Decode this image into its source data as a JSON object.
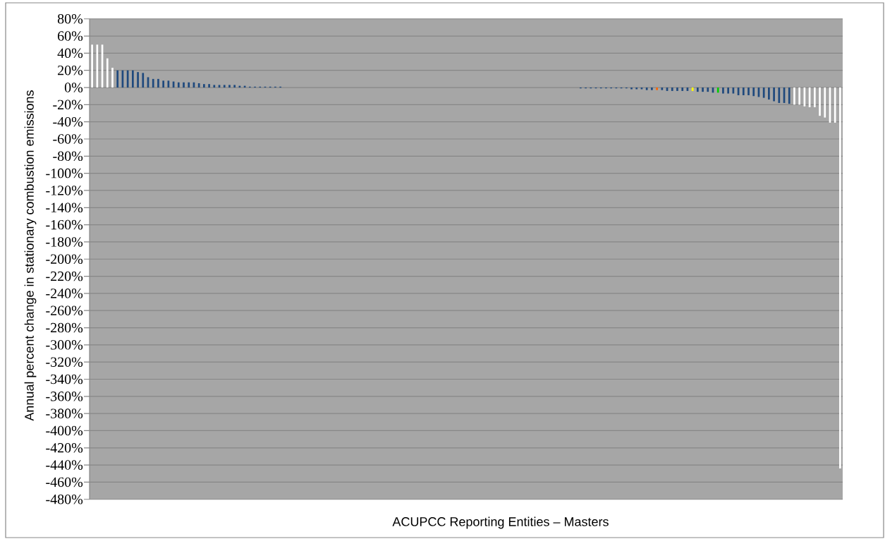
{
  "chart_data": {
    "type": "bar",
    "xlabel": "ACUPCC Reporting Entities – Masters",
    "ylabel": "Annual percent change in stationary combustion emissions",
    "categories": [
      null,
      null,
      null,
      null,
      null,
      null,
      null,
      null,
      null,
      null,
      null,
      null,
      null,
      null,
      null,
      null,
      null,
      null,
      null,
      null,
      null,
      null,
      null,
      null,
      null,
      null,
      null,
      null,
      null,
      null,
      null,
      null,
      null,
      null,
      null,
      null,
      null,
      null,
      null,
      null,
      null,
      null,
      null,
      null,
      null,
      null,
      null,
      null,
      null,
      null,
      null,
      null,
      null,
      null,
      null,
      null,
      null,
      null,
      null,
      null,
      null,
      null,
      null,
      null,
      null,
      null,
      null,
      null,
      null,
      null,
      null,
      null,
      null,
      null,
      null,
      null,
      null,
      null,
      null,
      null,
      null,
      null,
      null,
      null,
      null,
      null,
      null,
      null,
      null,
      null,
      null,
      null,
      null,
      null,
      null,
      null,
      null,
      null,
      null,
      null,
      null,
      null,
      null,
      null,
      null,
      null,
      null,
      null,
      null,
      null,
      null,
      null,
      null,
      null,
      null,
      null,
      null,
      null,
      null,
      null,
      null,
      null,
      null,
      null,
      null,
      null,
      null,
      null,
      null,
      null,
      null,
      null,
      null,
      null,
      null,
      null,
      null,
      null,
      null,
      null,
      null,
      null,
      null,
      null,
      null,
      null,
      null,
      null
    ],
    "values": [
      50,
      50,
      50,
      34,
      23,
      20,
      20,
      20,
      20,
      18,
      17,
      12,
      10,
      10,
      8,
      8,
      7,
      6,
      6,
      6,
      6,
      5,
      4,
      4,
      3,
      3,
      3,
      3,
      3,
      2,
      2,
      1,
      1,
      1,
      1,
      1,
      1,
      1,
      null,
      null,
      null,
      null,
      null,
      null,
      null,
      null,
      null,
      null,
      null,
      null,
      null,
      null,
      null,
      null,
      null,
      null,
      null,
      null,
      null,
      null,
      null,
      null,
      null,
      null,
      null,
      null,
      null,
      null,
      null,
      null,
      null,
      null,
      null,
      null,
      null,
      null,
      null,
      null,
      null,
      null,
      null,
      null,
      null,
      null,
      null,
      null,
      null,
      null,
      null,
      null,
      null,
      null,
      null,
      null,
      null,
      null,
      -1,
      -1,
      -1,
      -1,
      -1,
      -1,
      -1,
      -1,
      -1,
      -1,
      -2,
      -2,
      -2,
      -3,
      -3,
      -3,
      -3,
      -4,
      -4,
      -4,
      -4,
      -4,
      -4,
      -5,
      -5,
      -5,
      -6,
      -6,
      -7,
      -7,
      -7,
      -9,
      -9,
      -9,
      -10,
      -11,
      -12,
      -14,
      -16,
      -18,
      -18,
      -19,
      -20,
      -20,
      -22,
      -23,
      -23,
      -33,
      -35,
      -41,
      -41,
      -444
    ],
    "colors": [
      "#ffffff",
      "#ffffff",
      "#ffffff",
      "#ffffff",
      "#ffffff",
      "#1f497d",
      "#1f497d",
      "#1f497d",
      "#1f497d",
      "#1f497d",
      "#1f497d",
      "#1f497d",
      "#1f497d",
      "#1f497d",
      "#1f497d",
      "#1f497d",
      "#1f497d",
      "#1f497d",
      "#1f497d",
      "#1f497d",
      "#1f497d",
      "#1f497d",
      "#1f497d",
      "#1f497d",
      "#1f497d",
      "#1f497d",
      "#1f497d",
      "#1f497d",
      "#1f497d",
      "#1f497d",
      "#1f497d",
      "#1f497d",
      "#1f497d",
      "#1f497d",
      "#1f497d",
      "#1f497d",
      "#1f497d",
      "#1f497d",
      "#1f497d",
      "#1f497d",
      "#1f497d",
      "#1f497d",
      "#1f497d",
      "#1f497d",
      "#1f497d",
      "#1f497d",
      "#1f497d",
      "#1f497d",
      "#1f497d",
      "#1f497d",
      "#1f497d",
      "#1f497d",
      "#1f497d",
      "#1f497d",
      "#1f497d",
      "#1f497d",
      "#1f497d",
      "#1f497d",
      "#1f497d",
      "#1f497d",
      "#1f497d",
      "#1f497d",
      "#1f497d",
      "#1f497d",
      "#1f497d",
      "#1f497d",
      "#1f497d",
      "#1f497d",
      "#1f497d",
      "#1f497d",
      "#1f497d",
      "#1f497d",
      "#1f497d",
      "#1f497d",
      "#1f497d",
      "#1f497d",
      "#1f497d",
      "#1f497d",
      "#1f497d",
      "#1f497d",
      "#1f497d",
      "#1f497d",
      "#1f497d",
      "#1f497d",
      "#1f497d",
      "#1f497d",
      "#1f497d",
      "#1f497d",
      "#1f497d",
      "#1f497d",
      "#1f497d",
      "#1f497d",
      "#1f497d",
      "#1f497d",
      "#1f497d",
      "#1f497d",
      "#1f497d",
      "#1f497d",
      "#1f497d",
      "#1f497d",
      "#1f497d",
      "#1f497d",
      "#1f497d",
      "#1f497d",
      "#1f497d",
      "#1f497d",
      "#1f497d",
      "#1f497d",
      "#1f497d",
      "#1f497d",
      "#1f497d",
      "#ff6600",
      "#1f497d",
      "#1f497d",
      "#1f497d",
      "#1f497d",
      "#1f497d",
      "#1f497d",
      "#ffff00",
      "#1f497d",
      "#1f497d",
      "#1f497d",
      "#1f497d",
      "#00cc00",
      "#1f497d",
      "#1f497d",
      "#1f497d",
      "#1f497d",
      "#1f497d",
      "#1f497d",
      "#1f497d",
      "#1f497d",
      "#1f497d",
      "#1f497d",
      "#1f497d",
      "#1f497d",
      "#1f497d",
      "#1f497d",
      "#ffffff",
      "#ffffff",
      "#ffffff",
      "#ffffff",
      "#ffffff",
      "#ffffff",
      "#ffffff",
      "#ffffff",
      "#ffffff",
      "#ffffff"
    ],
    "ylim": [
      -480,
      80
    ],
    "yticks": [
      {
        "value": 80,
        "label": "80%"
      },
      {
        "value": 60,
        "label": "60%"
      },
      {
        "value": 40,
        "label": "40%"
      },
      {
        "value": 20,
        "label": "20%"
      },
      {
        "value": 0,
        "label": "0%"
      },
      {
        "value": -20,
        "label": "-20%"
      },
      {
        "value": -40,
        "label": "-40%"
      },
      {
        "value": -60,
        "label": "-60%"
      },
      {
        "value": -80,
        "label": "-80%"
      },
      {
        "value": -100,
        "label": "-100%"
      },
      {
        "value": -120,
        "label": "-120%"
      },
      {
        "value": -140,
        "label": "-140%"
      },
      {
        "value": -160,
        "label": "-160%"
      },
      {
        "value": -180,
        "label": "-180%"
      },
      {
        "value": -200,
        "label": "-200%"
      },
      {
        "value": -220,
        "label": "-220%"
      },
      {
        "value": -240,
        "label": "-240%"
      },
      {
        "value": -260,
        "label": "-260%"
      },
      {
        "value": -280,
        "label": "-280%"
      },
      {
        "value": -300,
        "label": "-300%"
      },
      {
        "value": -320,
        "label": "-320%"
      },
      {
        "value": -340,
        "label": "-340%"
      },
      {
        "value": -360,
        "label": "-360%"
      },
      {
        "value": -380,
        "label": "-380%"
      },
      {
        "value": -400,
        "label": "-400%"
      },
      {
        "value": -420,
        "label": "-420%"
      },
      {
        "value": -440,
        "label": "-440%"
      },
      {
        "value": -460,
        "label": "-460%"
      },
      {
        "value": -480,
        "label": "-480%"
      }
    ],
    "grid": "y",
    "tick_labels": "y"
  }
}
